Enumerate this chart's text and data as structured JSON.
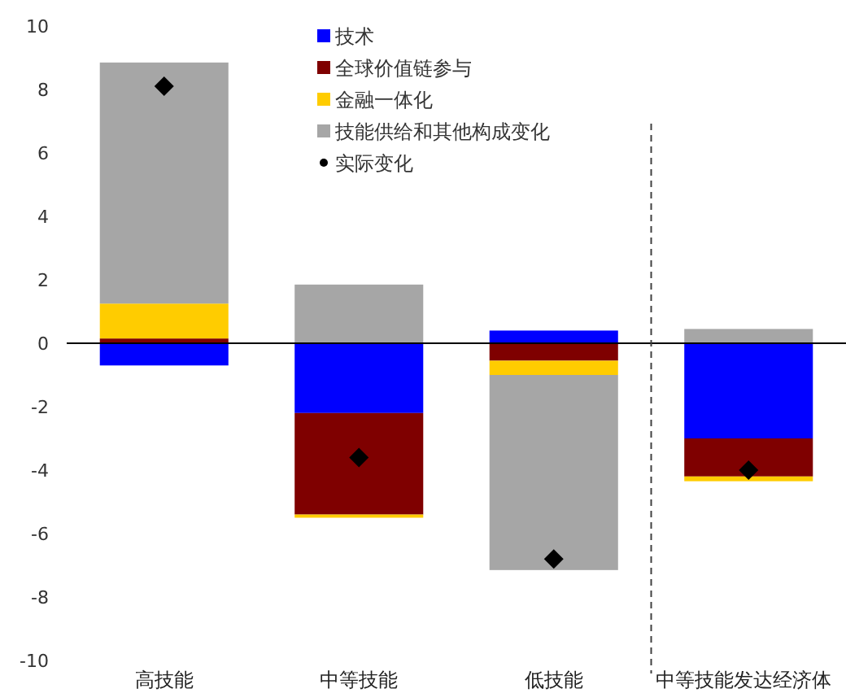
{
  "chart_data": {
    "type": "bar",
    "stacked": true,
    "categories": [
      "高技能",
      "中等技能",
      "低技能",
      "中等技能发达经济体"
    ],
    "series": [
      {
        "name": "技术",
        "color": "#0000ff",
        "values": [
          -0.7,
          -2.2,
          0.4,
          -3.0
        ]
      },
      {
        "name": "全球价值链参与",
        "color": "#7f0000",
        "values": [
          0.15,
          -3.2,
          -0.55,
          -1.2
        ]
      },
      {
        "name": "金融一体化",
        "color": "#ffcc00",
        "values": [
          1.1,
          -0.1,
          -0.45,
          -0.15
        ]
      },
      {
        "name": "技能供给和其他构成变化",
        "color": "#a6a6a6",
        "values": [
          7.6,
          1.85,
          -6.15,
          0.45
        ]
      },
      {
        "name": "实际变化",
        "type": "scatter",
        "marker": "diamond",
        "color": "#000000",
        "x": [
          "高技能",
          "中等技能",
          "低技能",
          "中等技能发达经济体"
        ],
        "values": [
          8.1,
          -3.6,
          -6.8,
          -4.0
        ]
      }
    ],
    "ylim": [
      -10,
      10
    ],
    "yticks": [
      -10,
      -8,
      -6,
      -4,
      -2,
      0,
      2,
      4,
      6,
      8,
      10
    ],
    "ref_lines": [
      {
        "axis": "x",
        "value": "中等技能发达经济体",
        "color": "#404040",
        "line_style": "dashed"
      }
    ],
    "grid": false,
    "legend": "top"
  }
}
